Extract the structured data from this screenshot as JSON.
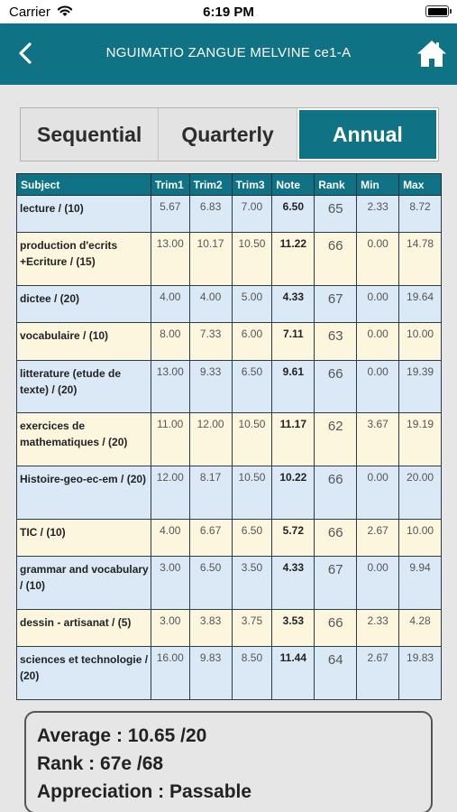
{
  "status_bar": {
    "carrier": "Carrier",
    "time": "6:19 PM"
  },
  "header": {
    "title": "NGUIMATIO ZANGUE MELVINE ce1-A"
  },
  "tabs": [
    {
      "label": "Sequential",
      "active": false
    },
    {
      "label": "Quarterly",
      "active": false
    },
    {
      "label": "Annual",
      "active": true
    }
  ],
  "table": {
    "columns": [
      "Subject",
      "Trim1",
      "Trim2",
      "Trim3",
      "Note",
      "Rank",
      "Min",
      "Max"
    ],
    "rows": [
      {
        "subject": "lecture / (10)",
        "trim1": "5.67",
        "trim2": "6.83",
        "trim3": "7.00",
        "note": "6.50",
        "rank": "65",
        "min": "2.33",
        "max": "8.72"
      },
      {
        "subject": "production d'ecrits +Ecriture / (15)",
        "trim1": "13.00",
        "trim2": "10.17",
        "trim3": "10.50",
        "note": "11.22",
        "rank": "66",
        "min": "0.00",
        "max": "14.78"
      },
      {
        "subject": "dictee / (20)",
        "trim1": "4.00",
        "trim2": "4.00",
        "trim3": "5.00",
        "note": "4.33",
        "rank": "67",
        "min": "0.00",
        "max": "19.64"
      },
      {
        "subject": "vocabulaire / (10)",
        "trim1": "8.00",
        "trim2": "7.33",
        "trim3": "6.00",
        "note": "7.11",
        "rank": "63",
        "min": "0.00",
        "max": "10.00"
      },
      {
        "subject": "litterature (etude de texte) / (20)",
        "trim1": "13.00",
        "trim2": "9.33",
        "trim3": "6.50",
        "note": "9.61",
        "rank": "66",
        "min": "0.00",
        "max": "19.39"
      },
      {
        "subject": "exercices de mathematiques / (20)",
        "trim1": "11.00",
        "trim2": "12.00",
        "trim3": "10.50",
        "note": "11.17",
        "rank": "62",
        "min": "3.67",
        "max": "19.19"
      },
      {
        "subject": "Histoire-geo-ec-em / (20)",
        "trim1": "12.00",
        "trim2": "8.17",
        "trim3": "10.50",
        "note": "10.22",
        "rank": "66",
        "min": "0.00",
        "max": "20.00"
      },
      {
        "subject": "TIC / (10)",
        "trim1": "4.00",
        "trim2": "6.67",
        "trim3": "6.50",
        "note": "5.72",
        "rank": "66",
        "min": "2.67",
        "max": "10.00"
      },
      {
        "subject": "grammar and vocabulary / (10)",
        "trim1": "3.00",
        "trim2": "6.50",
        "trim3": "3.50",
        "note": "4.33",
        "rank": "67",
        "min": "0.00",
        "max": "9.94"
      },
      {
        "subject": "dessin - artisanat / (5)",
        "trim1": "3.00",
        "trim2": "3.83",
        "trim3": "3.75",
        "note": "3.53",
        "rank": "66",
        "min": "2.33",
        "max": "4.28"
      },
      {
        "subject": "sciences et technologie / (20)",
        "trim1": "16.00",
        "trim2": "9.83",
        "trim3": "8.50",
        "note": "11.44",
        "rank": "64",
        "min": "2.67",
        "max": "19.83"
      }
    ]
  },
  "summary": {
    "average": "Average : 10.65 /20",
    "rank": "Rank : 67e /68",
    "appreciation": "Appreciation : Passable"
  },
  "colors": {
    "primary": "#0f7285",
    "row_blue": "#dbe9f7",
    "row_cream": "#fdf6df",
    "background": "#e6e6e6"
  },
  "icons": {
    "back": "chevron-left-icon",
    "home": "home-icon",
    "wifi": "wifi-icon",
    "battery": "battery-icon"
  }
}
